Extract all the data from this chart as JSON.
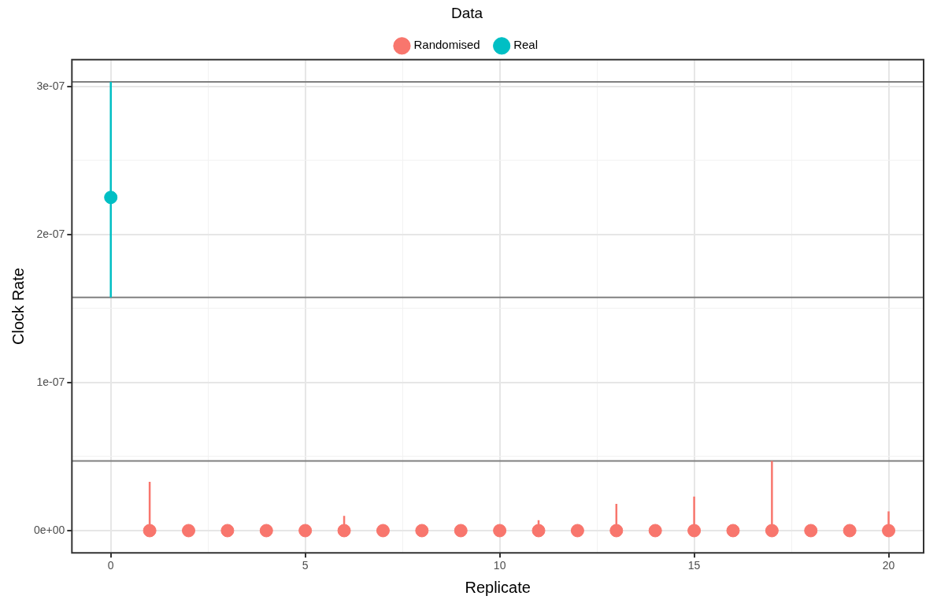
{
  "chart_data": {
    "type": "scatter",
    "xlabel": "Replicate",
    "ylabel": "Clock Rate",
    "legend_title": "Data",
    "legend": "top",
    "grid": true,
    "marker": "circle",
    "xlim": [
      -1,
      20.9
    ],
    "xticks": [
      0,
      {
        "value": 2.5,
        "label": null
      },
      5,
      {
        "value": 7.5,
        "label": null
      },
      10,
      {
        "value": 12.5,
        "label": null
      },
      15,
      {
        "value": 17.5,
        "label": null
      },
      20
    ],
    "ylim": [
      -1.5e-08,
      3.18e-07
    ],
    "yticks": [
      {
        "value": 0,
        "label": "0e+00"
      },
      {
        "value": 5e-08,
        "label": null
      },
      {
        "value": 1e-07,
        "label": "1e-07"
      },
      {
        "value": 1.5e-07,
        "label": null
      },
      {
        "value": 2e-07,
        "label": "2e-07"
      },
      {
        "value": 2.5e-07,
        "label": null
      },
      {
        "value": 3e-07,
        "label": "3e-07"
      }
    ],
    "series": [
      {
        "name": "Randomised",
        "color": "#f8766d",
        "x": [
          1,
          2,
          3,
          4,
          5,
          6,
          7,
          8,
          9,
          10,
          11,
          12,
          13,
          14,
          15,
          16,
          17,
          18,
          19,
          20
        ],
        "values": [
          0,
          0,
          0,
          0,
          0,
          0,
          0,
          0,
          0,
          0,
          0,
          0,
          0,
          0,
          0,
          0,
          0,
          0,
          0,
          0
        ],
        "errors": [
          [
            0,
            3.3e-08
          ],
          null,
          null,
          null,
          null,
          [
            0,
            1e-08
          ],
          null,
          null,
          null,
          null,
          [
            0,
            7e-09
          ],
          null,
          [
            0,
            1.8e-08
          ],
          null,
          [
            0,
            2.3e-08
          ],
          null,
          [
            0,
            4.7e-08
          ],
          null,
          null,
          [
            0,
            1.3e-08
          ]
        ]
      },
      {
        "name": "Real",
        "color": "#00bfc4",
        "x": [
          0
        ],
        "values": [
          2.25e-07
        ],
        "errors": [
          [
            1.575e-07,
            3.03e-07
          ]
        ]
      }
    ],
    "ref_lines": [
      {
        "axis": "y",
        "value": 3.03e-07,
        "color": "#808080"
      },
      {
        "axis": "y",
        "value": 1.575e-07,
        "color": "#808080"
      },
      {
        "axis": "y",
        "value": 4.7e-08,
        "color": "#808080"
      }
    ]
  }
}
